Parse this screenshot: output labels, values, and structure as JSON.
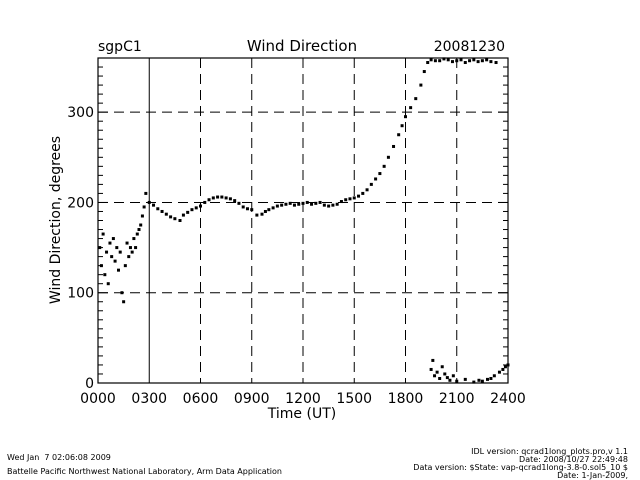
{
  "chart_data": {
    "type": "scatter",
    "site": "sgpC1",
    "title": "Wind Direction",
    "date": "20081230",
    "xlabel": "Time (UT)",
    "ylabel": "Wind Direction, degrees",
    "xlim": [
      0,
      24
    ],
    "ylim": [
      0,
      360
    ],
    "x_ticks": [
      0,
      3,
      6,
      9,
      12,
      15,
      18,
      21,
      24
    ],
    "x_tick_labels": [
      "0000",
      "0300",
      "0600",
      "0900",
      "1200",
      "1500",
      "1800",
      "2100",
      "2400"
    ],
    "y_ticks": [
      0,
      100,
      200,
      300
    ],
    "y_tick_labels": [
      "0",
      "100",
      "200",
      "300"
    ],
    "grid": true,
    "series": [
      {
        "name": "wind direction",
        "color": "#000000",
        "points": [
          [
            0.1,
            150
          ],
          [
            0.2,
            130
          ],
          [
            0.3,
            165
          ],
          [
            0.4,
            120
          ],
          [
            0.5,
            145
          ],
          [
            0.6,
            110
          ],
          [
            0.7,
            155
          ],
          [
            0.8,
            140
          ],
          [
            0.9,
            160
          ],
          [
            1.0,
            135
          ],
          [
            1.1,
            150
          ],
          [
            1.2,
            125
          ],
          [
            1.3,
            145
          ],
          [
            1.4,
            100
          ],
          [
            1.5,
            90
          ],
          [
            1.6,
            130
          ],
          [
            1.7,
            155
          ],
          [
            1.8,
            140
          ],
          [
            1.9,
            150
          ],
          [
            2.0,
            145
          ],
          [
            2.1,
            160
          ],
          [
            2.2,
            150
          ],
          [
            2.3,
            165
          ],
          [
            2.4,
            170
          ],
          [
            2.5,
            175
          ],
          [
            2.6,
            185
          ],
          [
            2.7,
            195
          ],
          [
            2.8,
            210
          ],
          [
            3.0,
            200
          ],
          [
            3.25,
            197
          ],
          [
            3.5,
            193
          ],
          [
            3.75,
            190
          ],
          [
            4.0,
            187
          ],
          [
            4.25,
            184
          ],
          [
            4.5,
            182
          ],
          [
            4.8,
            180
          ],
          [
            5.0,
            186
          ],
          [
            5.25,
            189
          ],
          [
            5.5,
            192
          ],
          [
            5.75,
            194
          ],
          [
            6.0,
            196
          ],
          [
            6.25,
            200
          ],
          [
            6.5,
            203
          ],
          [
            6.75,
            205
          ],
          [
            7.0,
            206
          ],
          [
            7.25,
            206
          ],
          [
            7.5,
            205
          ],
          [
            7.75,
            204
          ],
          [
            8.0,
            202
          ],
          [
            8.25,
            199
          ],
          [
            8.5,
            195
          ],
          [
            8.75,
            193
          ],
          [
            9.0,
            192
          ],
          [
            9.3,
            186
          ],
          [
            9.6,
            187
          ],
          [
            9.8,
            190
          ],
          [
            10.0,
            192
          ],
          [
            10.25,
            194
          ],
          [
            10.5,
            196
          ],
          [
            10.75,
            197
          ],
          [
            11.0,
            198
          ],
          [
            11.25,
            199
          ],
          [
            11.5,
            197
          ],
          [
            11.75,
            198
          ],
          [
            12.0,
            199
          ],
          [
            12.25,
            200
          ],
          [
            12.5,
            198
          ],
          [
            12.75,
            199
          ],
          [
            13.0,
            200
          ],
          [
            13.25,
            197
          ],
          [
            13.5,
            196
          ],
          [
            13.75,
            197
          ],
          [
            14.0,
            198
          ],
          [
            14.25,
            201
          ],
          [
            14.5,
            203
          ],
          [
            14.75,
            204
          ],
          [
            15.0,
            205
          ],
          [
            15.25,
            207
          ],
          [
            15.5,
            210
          ],
          [
            15.75,
            214
          ],
          [
            16.0,
            220
          ],
          [
            16.25,
            226
          ],
          [
            16.5,
            232
          ],
          [
            16.75,
            240
          ],
          [
            17.0,
            250
          ],
          [
            17.3,
            262
          ],
          [
            17.6,
            275
          ],
          [
            17.8,
            285
          ],
          [
            18.0,
            295
          ],
          [
            18.3,
            305
          ],
          [
            18.6,
            315
          ],
          [
            18.9,
            330
          ],
          [
            19.1,
            345
          ],
          [
            19.3,
            355
          ],
          [
            19.5,
            358
          ],
          [
            19.75,
            357
          ],
          [
            20.0,
            357
          ],
          [
            20.25,
            359
          ],
          [
            20.5,
            358
          ],
          [
            20.75,
            356
          ],
          [
            21.0,
            357
          ],
          [
            21.25,
            358
          ],
          [
            21.5,
            355
          ],
          [
            21.75,
            357
          ],
          [
            22.0,
            358
          ],
          [
            22.25,
            356
          ],
          [
            22.5,
            357
          ],
          [
            22.75,
            358
          ],
          [
            23.0,
            356
          ],
          [
            23.3,
            355
          ],
          [
            19.5,
            15
          ],
          [
            19.6,
            25
          ],
          [
            19.7,
            8
          ],
          [
            19.85,
            12
          ],
          [
            20.0,
            5
          ],
          [
            20.15,
            18
          ],
          [
            20.3,
            10
          ],
          [
            20.45,
            6
          ],
          [
            20.6,
            3
          ],
          [
            20.8,
            8
          ],
          [
            21.0,
            2
          ],
          [
            21.5,
            4
          ],
          [
            22.0,
            1
          ],
          [
            22.3,
            3
          ],
          [
            22.5,
            2
          ],
          [
            22.8,
            4
          ],
          [
            23.0,
            5
          ],
          [
            23.2,
            8
          ],
          [
            23.5,
            12
          ],
          [
            23.7,
            15
          ],
          [
            23.85,
            18
          ],
          [
            24.0,
            20
          ]
        ]
      }
    ]
  },
  "footer": {
    "timestamp": "Wed Jan  7 02:06:08 2009",
    "organization": "Battelle Pacific Northwest National Laboratory, Arm Data Application",
    "idl_version": "IDL version: qcrad1long_plots.pro,v 1.1",
    "idl_date": "Date: 2008/10/27 22:49:48",
    "data_version": "Data version: $State: vap-qcrad1long-3.8-0.sol5_10 $",
    "data_date": "Date: 1-Jan-2009,"
  }
}
